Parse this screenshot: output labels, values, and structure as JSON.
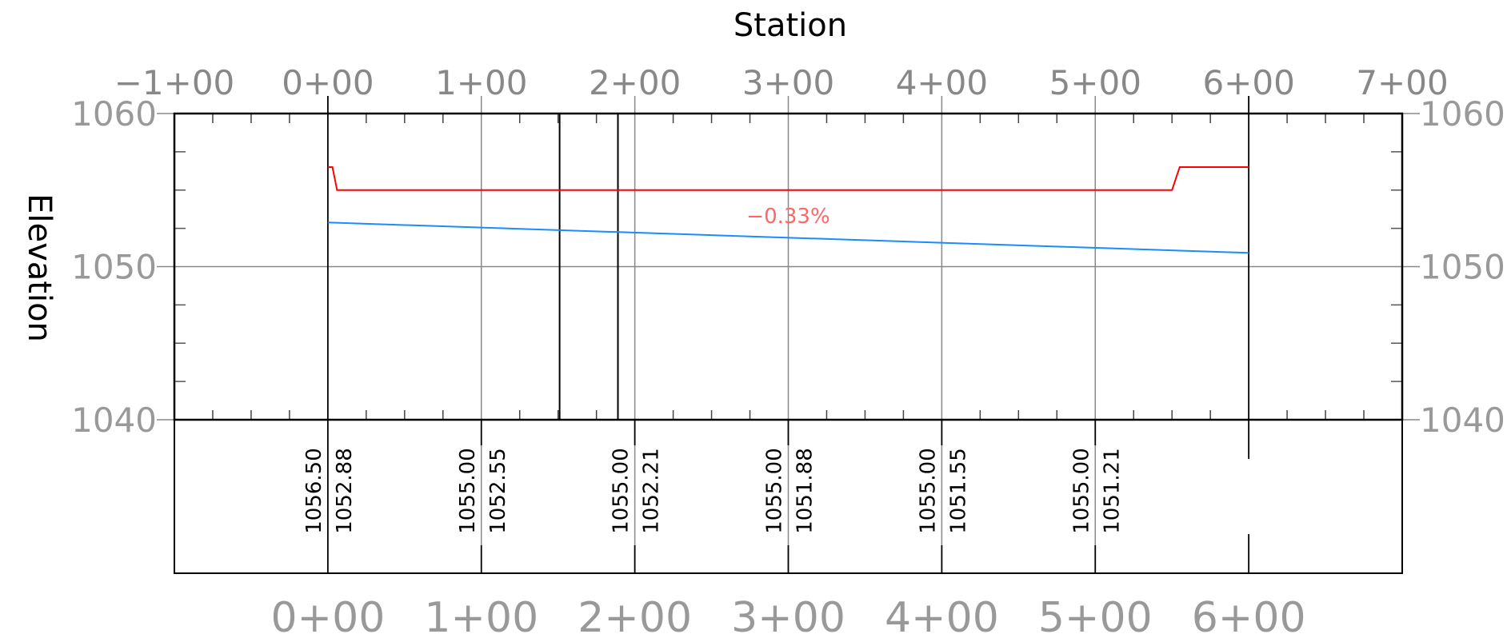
{
  "chart_data": {
    "type": "line",
    "title": "Station",
    "xlabel": "Station",
    "ylabel": "Elevation",
    "x_range": [
      -100,
      700
    ],
    "ylim": [
      1040,
      1060
    ],
    "top_tick_labels": [
      "−1+00",
      "0+00",
      "1+00",
      "2+00",
      "3+00",
      "4+00",
      "5+00",
      "6+00",
      "7+00"
    ],
    "bottom_tick_labels": [
      "0+00",
      "1+00",
      "2+00",
      "3+00",
      "4+00",
      "5+00",
      "6+00"
    ],
    "y_tick_labels": [
      "1040",
      "1050",
      "1060"
    ],
    "y_ticks": [
      1040,
      1050,
      1060
    ],
    "grid": true,
    "series": [
      {
        "color": "#ff0000",
        "x": [
          0,
          3,
          6,
          550,
          555,
          600
        ],
        "y": [
          1056.5,
          1056.5,
          1055.0,
          1055.0,
          1056.5,
          1056.5
        ]
      },
      {
        "color": "#1a8cff",
        "x": [
          0,
          600
        ],
        "y": [
          1052.88,
          1050.9
        ]
      }
    ],
    "vertical_marker_lines": [
      151,
      189
    ],
    "annotations": [
      {
        "text": "−0.33%",
        "x": 300,
        "y": 1052.85
      }
    ],
    "data_band": [
      {
        "x": 0,
        "existing": "1056.50",
        "proposed": "1052.88"
      },
      {
        "x": 100,
        "existing": "1055.00",
        "proposed": "1052.55"
      },
      {
        "x": 200,
        "existing": "1055.00",
        "proposed": "1052.21"
      },
      {
        "x": 300,
        "existing": "1055.00",
        "proposed": "1051.88"
      },
      {
        "x": 400,
        "existing": "1055.00",
        "proposed": "1051.55"
      },
      {
        "x": 500,
        "existing": "1055.00",
        "proposed": "1051.21"
      }
    ]
  }
}
